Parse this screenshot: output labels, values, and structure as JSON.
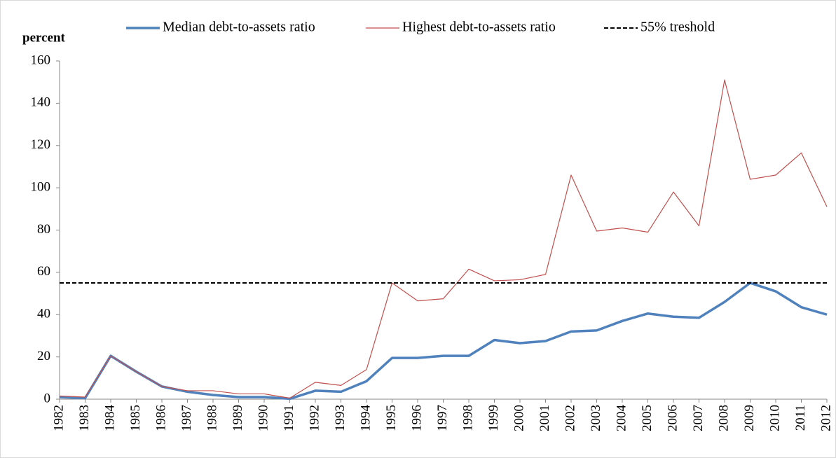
{
  "chart_data": {
    "type": "line",
    "y_axis_label": "percent",
    "categories": [
      "1982",
      "1983",
      "1984",
      "1985",
      "1986",
      "1987",
      "1988",
      "1989",
      "1990",
      "1991",
      "1992",
      "1993",
      "1994",
      "1995",
      "1996",
      "1997",
      "1998",
      "1999",
      "2000",
      "2001",
      "2002",
      "2003",
      "2004",
      "2005",
      "2006",
      "2007",
      "2008",
      "2009",
      "2010",
      "2011",
      "2012"
    ],
    "series": [
      {
        "name": "Median debt-to-assets ratio",
        "color": "#4f81bd",
        "values": [
          1,
          0.5,
          20.5,
          13,
          6,
          3.5,
          2,
          1,
          1,
          0.2,
          4,
          3.5,
          8.5,
          19.5,
          19.5,
          20.5,
          20.5,
          28,
          26.5,
          27.5,
          32,
          32.5,
          37,
          40.5,
          39,
          38.5,
          46,
          55,
          51,
          43.5,
          40
        ]
      },
      {
        "name": "Highest debt-to-assets ratio",
        "color": "#c0504d",
        "values": [
          1.5,
          1,
          20.5,
          13,
          6,
          4,
          4,
          2.5,
          2.5,
          0.5,
          8,
          6.5,
          14,
          55,
          46.5,
          47.5,
          61.5,
          56,
          56.5,
          59,
          106,
          79.5,
          81,
          79,
          98,
          82,
          151,
          104,
          106,
          116.5,
          91
        ]
      }
    ],
    "threshold": {
      "name": "55% treshold",
      "value": 55,
      "color": "#000000"
    },
    "ylim": [
      0,
      160
    ],
    "yticks": [
      0,
      20,
      40,
      60,
      80,
      100,
      120,
      140,
      160
    ],
    "grid": false
  }
}
